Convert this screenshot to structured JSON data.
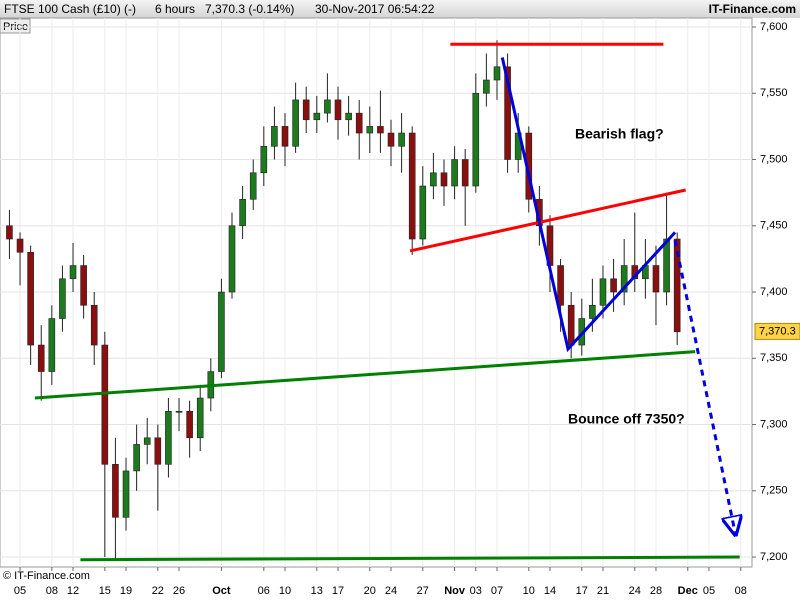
{
  "chart_data": {
    "type": "candlestick",
    "title": "FTSE 100 Cash (£10) (-)",
    "interval": "6 hours",
    "change": "7,370.3 (-0.14%)",
    "timestamp": "30-Nov-2017 06:54:22",
    "source": "IT-Finance.com",
    "copyright": "© IT-Finance.com",
    "y_label": "Price",
    "last_price": {
      "value": 7370.3,
      "label": "7,370.3"
    },
    "up_color": "#1e7a1e",
    "down_color": "#8a1010",
    "x": [
      -1,
      0,
      1,
      2,
      3,
      4,
      5,
      6,
      7,
      8,
      9,
      10,
      11,
      12,
      13,
      14,
      15,
      16,
      17,
      18,
      19,
      20,
      21,
      22,
      23,
      24,
      25,
      26,
      27,
      28,
      29,
      30,
      31,
      32,
      33,
      34,
      35,
      36,
      37,
      38,
      39,
      40,
      41,
      42,
      43,
      44,
      45,
      46,
      47,
      48,
      49,
      50,
      51,
      52,
      53,
      54,
      55,
      56,
      57,
      58,
      59,
      60,
      61,
      62
    ],
    "open": [
      7450,
      7440,
      7430,
      7360,
      7340,
      7380,
      7410,
      7420,
      7390,
      7360,
      7270,
      7230,
      7265,
      7285,
      7290,
      7270,
      7310,
      7310,
      7290,
      7320,
      7340,
      7400,
      7450,
      7470,
      7490,
      7510,
      7525,
      7510,
      7545,
      7530,
      7535,
      7545,
      7530,
      7535,
      7520,
      7525,
      7520,
      7510,
      7520,
      7440,
      7480,
      7490,
      7480,
      7500,
      7480,
      7550,
      7560,
      7570,
      7500,
      7520,
      7470,
      7450,
      7420,
      7390,
      7360,
      7380,
      7390,
      7410,
      7400,
      7420,
      7410,
      7420,
      7400,
      7440
    ],
    "high": [
      7462,
      7445,
      7435,
      7375,
      7390,
      7420,
      7437,
      7428,
      7400,
      7370,
      7290,
      7275,
      7300,
      7305,
      7300,
      7320,
      7320,
      7318,
      7330,
      7350,
      7410,
      7460,
      7480,
      7500,
      7525,
      7540,
      7535,
      7558,
      7555,
      7548,
      7565,
      7555,
      7548,
      7545,
      7540,
      7552,
      7530,
      7535,
      7525,
      7495,
      7505,
      7500,
      7510,
      7508,
      7565,
      7580,
      7590,
      7580,
      7535,
      7525,
      7480,
      7458,
      7425,
      7400,
      7395,
      7410,
      7420,
      7425,
      7440,
      7460,
      7440,
      7435,
      7475,
      7445
    ],
    "low": [
      7425,
      7405,
      7345,
      7318,
      7330,
      7370,
      7400,
      7380,
      7345,
      7200,
      7197,
      7220,
      7250,
      7270,
      7235,
      7260,
      7295,
      7275,
      7280,
      7310,
      7335,
      7395,
      7440,
      7462,
      7480,
      7500,
      7495,
      7505,
      7520,
      7520,
      7528,
      7515,
      7518,
      7500,
      7505,
      7505,
      7495,
      7490,
      7428,
      7435,
      7470,
      7465,
      7470,
      7450,
      7475,
      7540,
      7545,
      7490,
      7490,
      7460,
      7435,
      7400,
      7370,
      7350,
      7352,
      7370,
      7380,
      7385,
      7390,
      7400,
      7395,
      7375,
      7390,
      7360
    ],
    "close": [
      7440,
      7430,
      7360,
      7340,
      7380,
      7410,
      7420,
      7390,
      7360,
      7270,
      7230,
      7265,
      7285,
      7290,
      7270,
      7310,
      7310,
      7290,
      7320,
      7340,
      7400,
      7450,
      7470,
      7490,
      7510,
      7525,
      7510,
      7545,
      7530,
      7535,
      7545,
      7530,
      7535,
      7520,
      7525,
      7520,
      7510,
      7520,
      7440,
      7480,
      7490,
      7480,
      7500,
      7480,
      7550,
      7560,
      7570,
      7500,
      7520,
      7470,
      7450,
      7420,
      7390,
      7360,
      7380,
      7390,
      7410,
      7400,
      7420,
      7410,
      7420,
      7400,
      7440,
      7370
    ],
    "xlim": [
      -1.89,
      69.06
    ],
    "ylim": [
      7192.5,
      7606.8
    ],
    "yticks": [
      {
        "value": 7200,
        "label": "7,200"
      },
      {
        "value": 7250,
        "label": "7,250"
      },
      {
        "value": 7300,
        "label": "7,300"
      },
      {
        "value": 7350,
        "label": "7,350"
      },
      {
        "value": 7400,
        "label": "7,400"
      },
      {
        "value": 7450,
        "label": "7,450"
      },
      {
        "value": 7500,
        "label": "7,500"
      },
      {
        "value": 7550,
        "label": "7,550"
      },
      {
        "value": 7600,
        "label": "7,600"
      }
    ],
    "xticks": [
      {
        "value": 0,
        "label": "05"
      },
      {
        "value": 3,
        "label": "08"
      },
      {
        "value": 5,
        "label": "12"
      },
      {
        "value": 8,
        "label": "15"
      },
      {
        "value": 10,
        "label": "19"
      },
      {
        "value": 13,
        "label": "22"
      },
      {
        "value": 15,
        "label": "26"
      },
      {
        "value": 19,
        "label": "Oct"
      },
      {
        "value": 23,
        "label": "06"
      },
      {
        "value": 25,
        "label": "10"
      },
      {
        "value": 28,
        "label": "13"
      },
      {
        "value": 30,
        "label": "17"
      },
      {
        "value": 33,
        "label": "20"
      },
      {
        "value": 35,
        "label": "24"
      },
      {
        "value": 38,
        "label": "27"
      },
      {
        "value": 41,
        "label": "Nov"
      },
      {
        "value": 43,
        "label": "03"
      },
      {
        "value": 45,
        "label": "07"
      },
      {
        "value": 48,
        "label": "10"
      },
      {
        "value": 50,
        "label": "14"
      },
      {
        "value": 53,
        "label": "17"
      },
      {
        "value": 55,
        "label": "21"
      },
      {
        "value": 58,
        "label": "24"
      },
      {
        "value": 60,
        "label": "28"
      },
      {
        "value": 63,
        "label": "Dec"
      },
      {
        "value": 65,
        "label": "05"
      },
      {
        "value": 68,
        "label": "08"
      }
    ],
    "grid": true,
    "lines": [
      {
        "color": "#ff0000",
        "x": [
          40.6,
          60.7
        ],
        "y": [
          7587,
          7587
        ]
      },
      {
        "color": "#ff0000",
        "x": [
          36.8,
          62.8
        ],
        "y": [
          7431,
          7477
        ]
      },
      {
        "color": "#0000dd",
        "x": [
          45.5,
          51.7,
          61.8
        ],
        "y": [
          7577,
          7357,
          7445
        ]
      },
      {
        "color": "#0000dd",
        "dashed": true,
        "arrow": true,
        "x": [
          61.8,
          67.5
        ],
        "y": [
          7439,
          7217
        ]
      },
      {
        "color": "#008000",
        "x": [
          1.4,
          63.7
        ],
        "y": [
          7320,
          7355
        ]
      },
      {
        "color": "#008000",
        "x": [
          5.7,
          67.9
        ],
        "y": [
          7198,
          7200
        ]
      }
    ],
    "annotations": [
      {
        "text": "Bearish flag?",
        "color": "#0000cc"
      },
      {
        "text": "Bounce off 7350?",
        "color": "#008000"
      }
    ]
  }
}
